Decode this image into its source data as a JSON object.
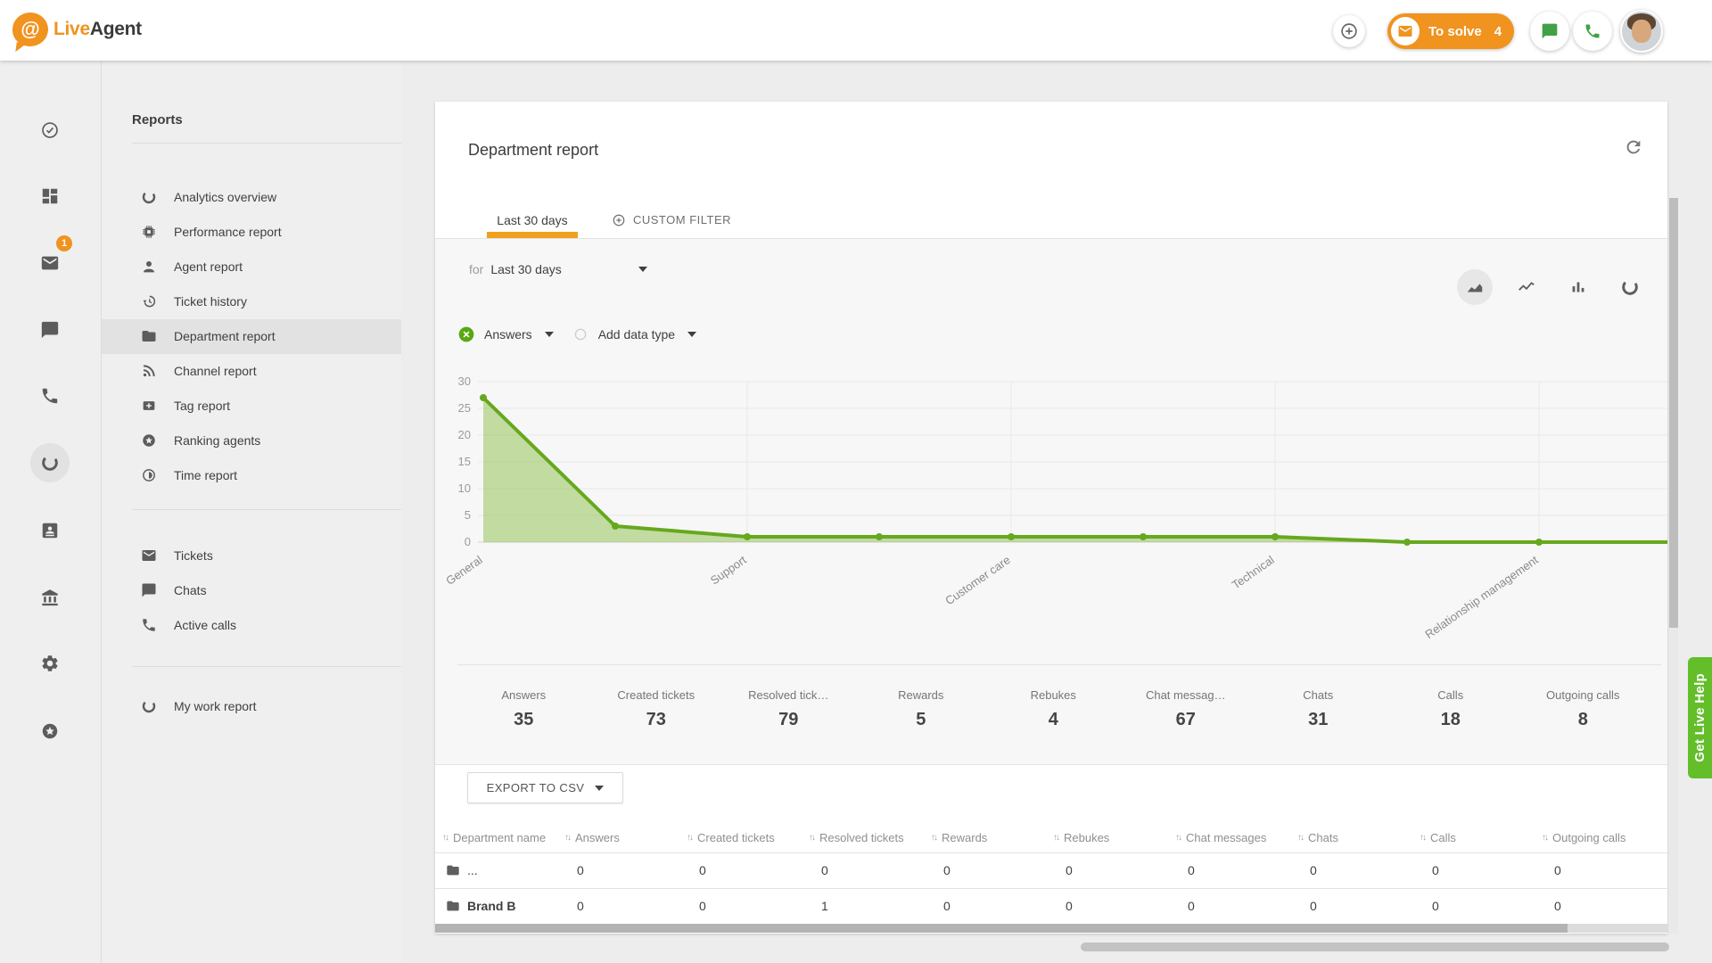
{
  "colors": {
    "accent_orange": "#F0931F",
    "tab_underline": "#F0A01E",
    "chart_green": "#66A81F",
    "chart_fill": "rgba(141,191,73,0.5)",
    "help_green": "#63BE2A",
    "chip_green": "#58A813",
    "header_icon_green": "#43A047"
  },
  "header": {
    "logo_live": "Live",
    "logo_agent": "Agent",
    "to_solve": {
      "label": "To solve",
      "count": "4"
    }
  },
  "rail": {
    "items": [
      {
        "name": "tasks",
        "icon": "check-circle"
      },
      {
        "name": "dashboard",
        "icon": "dashboard"
      },
      {
        "name": "tickets",
        "icon": "mail",
        "badge": "1"
      },
      {
        "name": "chats",
        "icon": "chat"
      },
      {
        "name": "calls",
        "icon": "phone"
      },
      {
        "name": "reports",
        "icon": "donut-arc",
        "selected": true
      },
      {
        "name": "contacts",
        "icon": "contact-card"
      },
      {
        "name": "company",
        "icon": "bank"
      },
      {
        "name": "settings",
        "icon": "gear"
      },
      {
        "name": "gamification",
        "icon": "star-circle"
      }
    ]
  },
  "sidebar": {
    "title": "Reports",
    "groups": [
      {
        "items": [
          {
            "label": "Analytics overview",
            "icon": "donut-arc"
          },
          {
            "label": "Performance report",
            "icon": "chip"
          },
          {
            "label": "Agent report",
            "icon": "person"
          },
          {
            "label": "Ticket history",
            "icon": "history"
          },
          {
            "label": "Department report",
            "icon": "folder",
            "selected": true
          },
          {
            "label": "Channel report",
            "icon": "rss"
          },
          {
            "label": "Tag report",
            "icon": "tag"
          },
          {
            "label": "Ranking agents",
            "icon": "star-circle"
          },
          {
            "label": "Time report",
            "icon": "time-pie"
          }
        ]
      },
      {
        "items": [
          {
            "label": "Tickets",
            "icon": "mail"
          },
          {
            "label": "Chats",
            "icon": "chat"
          },
          {
            "label": "Active calls",
            "icon": "phone"
          }
        ]
      },
      {
        "items": [
          {
            "label": "My work report",
            "icon": "donut-arc"
          }
        ]
      }
    ]
  },
  "report": {
    "title": "Department report",
    "tabs": {
      "tab1": "Last 30 days",
      "tab2": "CUSTOM FILTER"
    },
    "filter": {
      "prefix": "for",
      "value": "Last 30 days"
    },
    "chart_tools": [
      {
        "name": "area-chart",
        "selected": true
      },
      {
        "name": "line-chart"
      },
      {
        "name": "bar-chart"
      },
      {
        "name": "donut-chart"
      }
    ],
    "series_chip": "Answers",
    "add_chip": "Add data type",
    "stats": [
      {
        "label": "Answers",
        "value": "35"
      },
      {
        "label": "Created tickets",
        "value": "73"
      },
      {
        "label": "Resolved tick…",
        "value": "79"
      },
      {
        "label": "Rewards",
        "value": "5"
      },
      {
        "label": "Rebukes",
        "value": "4"
      },
      {
        "label": "Chat messag…",
        "value": "67"
      },
      {
        "label": "Chats",
        "value": "31"
      },
      {
        "label": "Calls",
        "value": "18"
      },
      {
        "label": "Outgoing calls",
        "value": "8"
      }
    ],
    "export_button": "EXPORT TO CSV",
    "table": {
      "columns": [
        "Department name",
        "Answers",
        "Created tickets",
        "Resolved tickets",
        "Rewards",
        "Rebukes",
        "Chat messages",
        "Chats",
        "Calls",
        "Outgoing calls"
      ],
      "rows": [
        {
          "name": "...",
          "bold": false,
          "values": [
            "0",
            "0",
            "0",
            "0",
            "0",
            "0",
            "0",
            "0",
            "0"
          ]
        },
        {
          "name": "Brand B",
          "bold": true,
          "values": [
            "0",
            "0",
            "1",
            "0",
            "0",
            "0",
            "0",
            "0",
            "0"
          ]
        }
      ]
    }
  },
  "chart_data": {
    "type": "area",
    "series_name": "Answers",
    "categories": [
      "General",
      "",
      "Support",
      "",
      "Customer care",
      "",
      "Technical",
      "",
      "Relationship management",
      ""
    ],
    "values": [
      27,
      3,
      1,
      1,
      1,
      1,
      1,
      0,
      0,
      0
    ],
    "title": "",
    "xlabel": "",
    "ylabel": "",
    "ylim": [
      0,
      30
    ],
    "ytick_step": 5,
    "grid": true,
    "legend": "none",
    "line_color": "#66A81F",
    "fill_color": "rgba(141,191,73,0.5)"
  },
  "help_tab": "Get Live Help"
}
